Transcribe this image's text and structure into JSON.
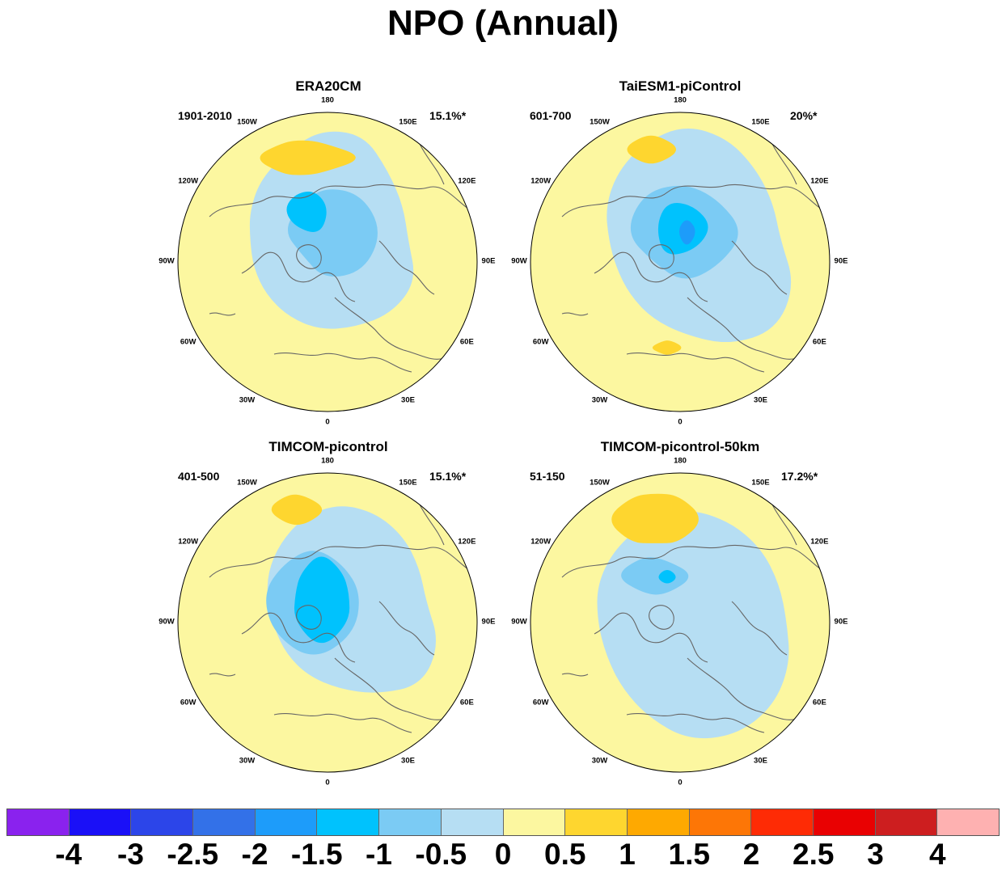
{
  "title": "NPO (Annual)",
  "panels": [
    {
      "title": "ERA20CM",
      "period": "1901-2010",
      "variance": "15.1%*"
    },
    {
      "title": "TaiESM1-piControl",
      "period": "601-700",
      "variance": "20%*"
    },
    {
      "title": "TIMCOM-picontrol",
      "period": "401-500",
      "variance": "15.1%*"
    },
    {
      "title": "TIMCOM-picontrol-50km",
      "period": "51-150",
      "variance": "17.2%*"
    }
  ],
  "lon_labels": [
    "180",
    "150E",
    "120E",
    "90E",
    "60E",
    "30E",
    "0",
    "30W",
    "60W",
    "90W",
    "120W",
    "150W"
  ],
  "colorbar": {
    "colors": [
      "#8a22ee",
      "#1a10f7",
      "#2c45e9",
      "#3371e8",
      "#1d9cfa",
      "#00c2fd",
      "#7bcbf4",
      "#b6def3",
      "#fcf7a0",
      "#fed62f",
      "#fea901",
      "#fd7606",
      "#fe2b05",
      "#e90102",
      "#cd1e1f",
      "#feb1b1"
    ],
    "labels": [
      "-4",
      "-3",
      "-2.5",
      "-2",
      "-1.5",
      "-1",
      "-0.5",
      "0",
      "0.5",
      "1",
      "1.5",
      "2",
      "2.5",
      "3",
      "4"
    ]
  },
  "palette": {
    "ocean_base": "#fcf7a0",
    "neg1": "#b6def3",
    "neg2": "#7bcbf4",
    "neg3": "#00c2fd",
    "neg4": "#1d9cfa",
    "pos1": "#fed62f",
    "coast": "#666666"
  }
}
